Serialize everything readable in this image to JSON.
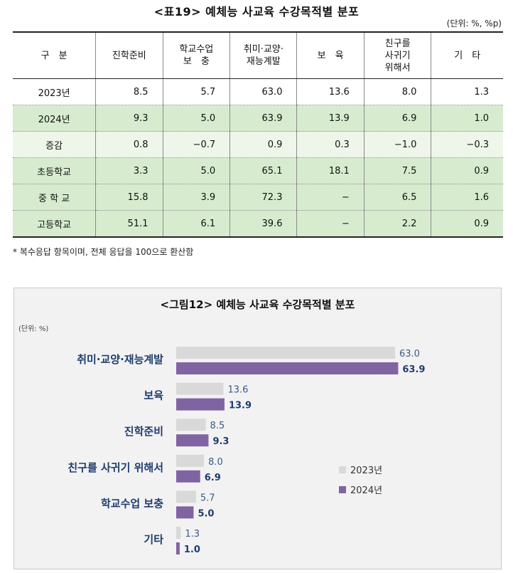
{
  "table": {
    "title": "<표19> 예체능 사교육 수강목적별 분포",
    "unit": "(단위: %, %p)",
    "headers": [
      [
        "구　분"
      ],
      [
        "진학준비"
      ],
      [
        "학교수업",
        "보　충"
      ],
      [
        "취미·교양·",
        "재능계발"
      ],
      [
        "보　육"
      ],
      [
        "친구를",
        "사귀기",
        "위해서"
      ],
      [
        "기　타"
      ]
    ],
    "rows": [
      {
        "label": "2023년",
        "values": [
          "8.5",
          "5.7",
          "63.0",
          "13.6",
          "8.0",
          "1.3"
        ],
        "style": "w"
      },
      {
        "label": "2024년",
        "values": [
          "9.3",
          "5.0",
          "63.9",
          "13.9",
          "6.9",
          "1.0"
        ],
        "style": "g"
      },
      {
        "label": "증감",
        "values": [
          "0.8",
          "−0.7",
          "0.9",
          "0.3",
          "−1.0",
          "−0.3"
        ],
        "style": "lg"
      },
      {
        "label": "초등학교",
        "values": [
          "3.3",
          "5.0",
          "65.1",
          "18.1",
          "7.5",
          "0.9"
        ],
        "style": "g"
      },
      {
        "label": "중 학 교",
        "values": [
          "15.8",
          "3.9",
          "72.3",
          "−",
          "6.5",
          "1.6"
        ],
        "style": "g"
      },
      {
        "label": "고등학교",
        "values": [
          "51.1",
          "6.1",
          "39.6",
          "−",
          "2.2",
          "0.9"
        ],
        "style": "g"
      }
    ],
    "footnote": "* 복수응답 항목이며, 전체 응답을 100으로 환산함"
  },
  "chart_data": {
    "type": "bar",
    "orientation": "horizontal",
    "title": "<그림12> 예체능 사교육 수강목적별 분포",
    "unit_label": "(단위: %)",
    "categories": [
      "취미·교양·재능계발",
      "보육",
      "진학준비",
      "친구를 사귀기 위해서",
      "학교수업 보충",
      "기타"
    ],
    "series": [
      {
        "name": "2023년",
        "values": [
          63.0,
          13.6,
          8.5,
          8.0,
          5.7,
          1.3
        ],
        "labels": [
          "63.0",
          "13.6",
          "8.5",
          "8.0",
          "5.7",
          "1.3"
        ],
        "color": "#d9d9d9",
        "label_color": "#3a5a86"
      },
      {
        "name": "2024년",
        "values": [
          63.9,
          13.9,
          9.3,
          6.9,
          5.0,
          1.0
        ],
        "labels": [
          "63.9",
          "13.9",
          "9.3",
          "6.9",
          "5.0",
          "1.0"
        ],
        "color": "#8064a2",
        "label_color": "#1f3d6e"
      }
    ],
    "xlim": [
      0,
      70
    ],
    "legend": "right-middle",
    "category_color": "#1f3d6e"
  }
}
